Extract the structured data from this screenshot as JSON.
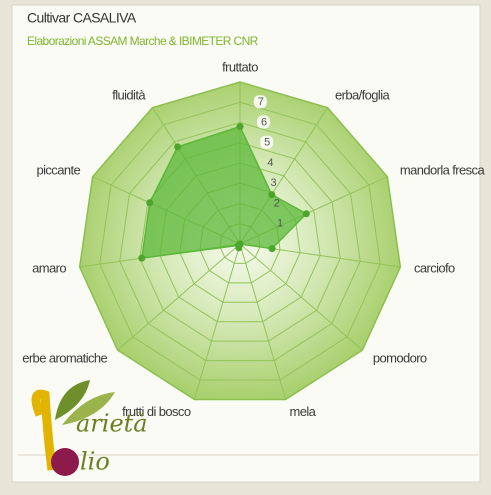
{
  "chart_data": {
    "type": "radar",
    "title": "Cultivar CASALIVA",
    "subtitle": "Elaborazioni ASSAM Marche & IBIMETER CNR",
    "categories": [
      "fruttato",
      "erba/foglia",
      "mandorla fresca",
      "carciofo",
      "pomodoro",
      "mela",
      "frutti di bosco",
      "erbe aromatiche",
      "amaro",
      "piccante",
      "fluidità"
    ],
    "values": [
      5.8,
      2.9,
      3.6,
      1.6,
      0,
      0,
      0.2,
      0.1,
      4.9,
      4.9,
      5.7
    ],
    "color": "#5cb83a",
    "ylim": [
      0,
      8
    ],
    "yticks": [
      1,
      2,
      3,
      4,
      5,
      6,
      7
    ],
    "grid": true
  },
  "logo": {
    "word1": "arietà",
    "word2": "lio"
  }
}
